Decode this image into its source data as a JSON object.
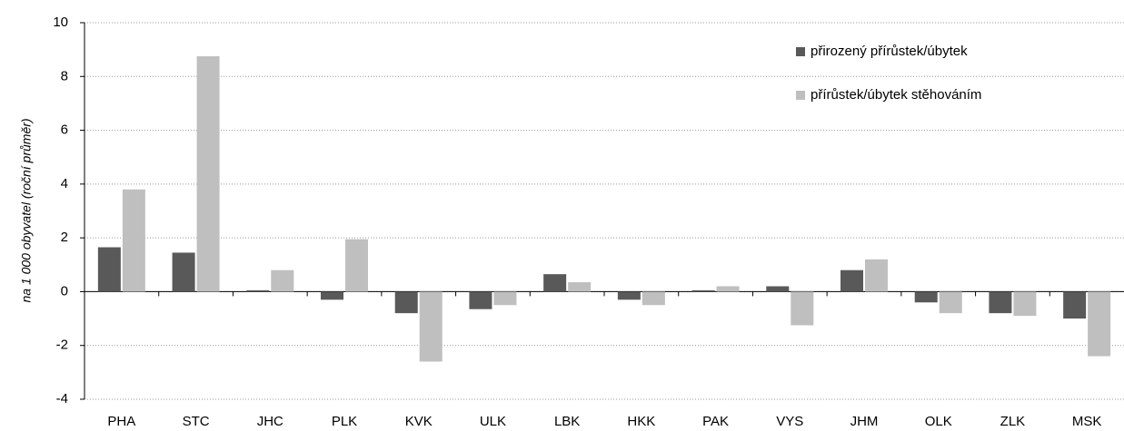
{
  "chart_data": {
    "type": "bar",
    "categories": [
      "PHA",
      "STC",
      "JHC",
      "PLK",
      "KVK",
      "ULK",
      "LBK",
      "HKK",
      "PAK",
      "VYS",
      "JHM",
      "OLK",
      "ZLK",
      "MSK"
    ],
    "series": [
      {
        "name": "přirozený přírůstek/úbytek",
        "color": "#595959",
        "values": [
          1.65,
          1.45,
          0.05,
          -0.3,
          -0.8,
          -0.65,
          0.65,
          -0.3,
          0.05,
          0.2,
          0.8,
          -0.4,
          -0.8,
          -1.0
        ]
      },
      {
        "name": "přírůstek/úbytek stěhováním",
        "color": "#bfbfbf",
        "values": [
          3.8,
          8.75,
          0.8,
          1.95,
          -2.6,
          -0.5,
          0.35,
          -0.5,
          0.2,
          -1.25,
          1.2,
          -0.8,
          -0.9,
          -2.4
        ]
      }
    ],
    "y_label": "na 1 000 obyvatel (roční průměr)",
    "ylim": [
      -4,
      10
    ],
    "yticks": [
      -4,
      -2,
      0,
      2,
      4,
      6,
      8,
      10
    ],
    "grid": true,
    "legend": "top-right"
  }
}
